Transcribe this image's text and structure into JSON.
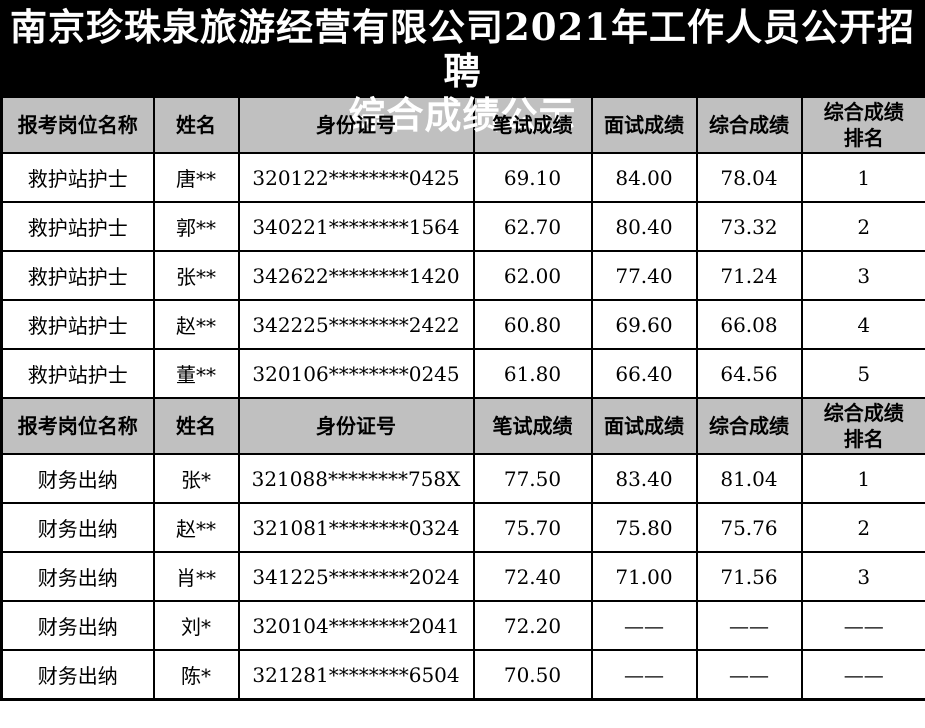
{
  "title": {
    "line1": "南京珍珠泉旅游经营有限公司2021年工作人员公开招聘",
    "line2": "综合成绩公示"
  },
  "colors": {
    "title_bg": "#000000",
    "title_text": "#ffffff",
    "header_bg": "#c0c0c0",
    "border": "#000000"
  },
  "table": {
    "headers": [
      "报考岗位名称",
      "姓名",
      "身份证号",
      "笔试成绩",
      "面试成绩",
      "综合成绩",
      "综合成绩排名"
    ],
    "sections": [
      {
        "rows": [
          [
            "救护站护士",
            "唐**",
            "320122********0425",
            "69.10",
            "84.00",
            "78.04",
            "1"
          ],
          [
            "救护站护士",
            "郭**",
            "340221********1564",
            "62.70",
            "80.40",
            "73.32",
            "2"
          ],
          [
            "救护站护士",
            "张**",
            "342622********1420",
            "62.00",
            "77.40",
            "71.24",
            "3"
          ],
          [
            "救护站护士",
            "赵**",
            "342225********2422",
            "60.80",
            "69.60",
            "66.08",
            "4"
          ],
          [
            "救护站护士",
            "董**",
            "320106********0245",
            "61.80",
            "66.40",
            "64.56",
            "5"
          ]
        ]
      },
      {
        "rows": [
          [
            "财务出纳",
            "张*",
            "321088********758X",
            "77.50",
            "83.40",
            "81.04",
            "1"
          ],
          [
            "财务出纳",
            "赵**",
            "321081********0324",
            "75.70",
            "75.80",
            "75.76",
            "2"
          ],
          [
            "财务出纳",
            "肖**",
            "341225********2024",
            "72.40",
            "71.00",
            "71.56",
            "3"
          ],
          [
            "财务出纳",
            "刘*",
            "320104********2041",
            "72.20",
            "——",
            "——",
            "——"
          ],
          [
            "财务出纳",
            "陈*",
            "321281********6504",
            "70.50",
            "——",
            "——",
            "——"
          ]
        ]
      }
    ]
  }
}
